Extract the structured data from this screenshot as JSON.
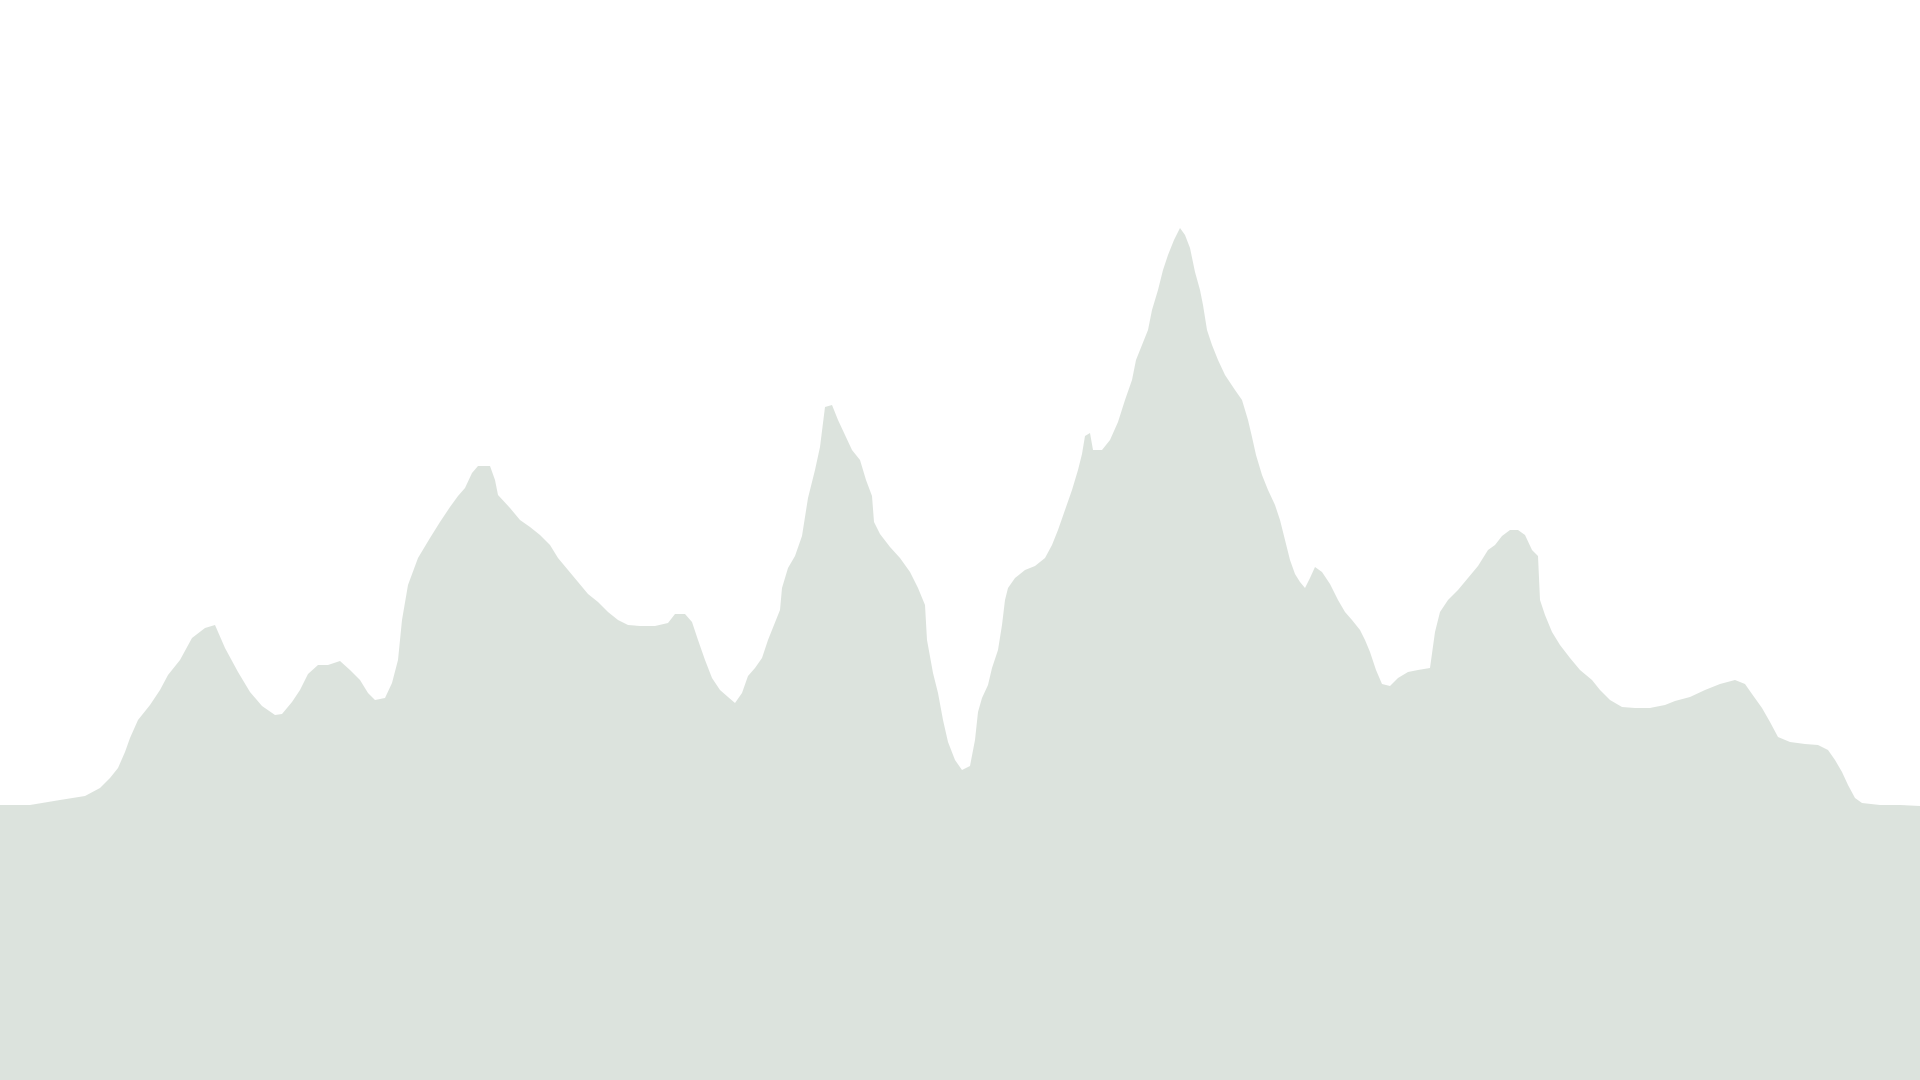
{
  "scene": {
    "background_color": "#ffffff",
    "silhouette_color": "#dce3dd",
    "subject": "mountain-range-silhouette"
  }
}
